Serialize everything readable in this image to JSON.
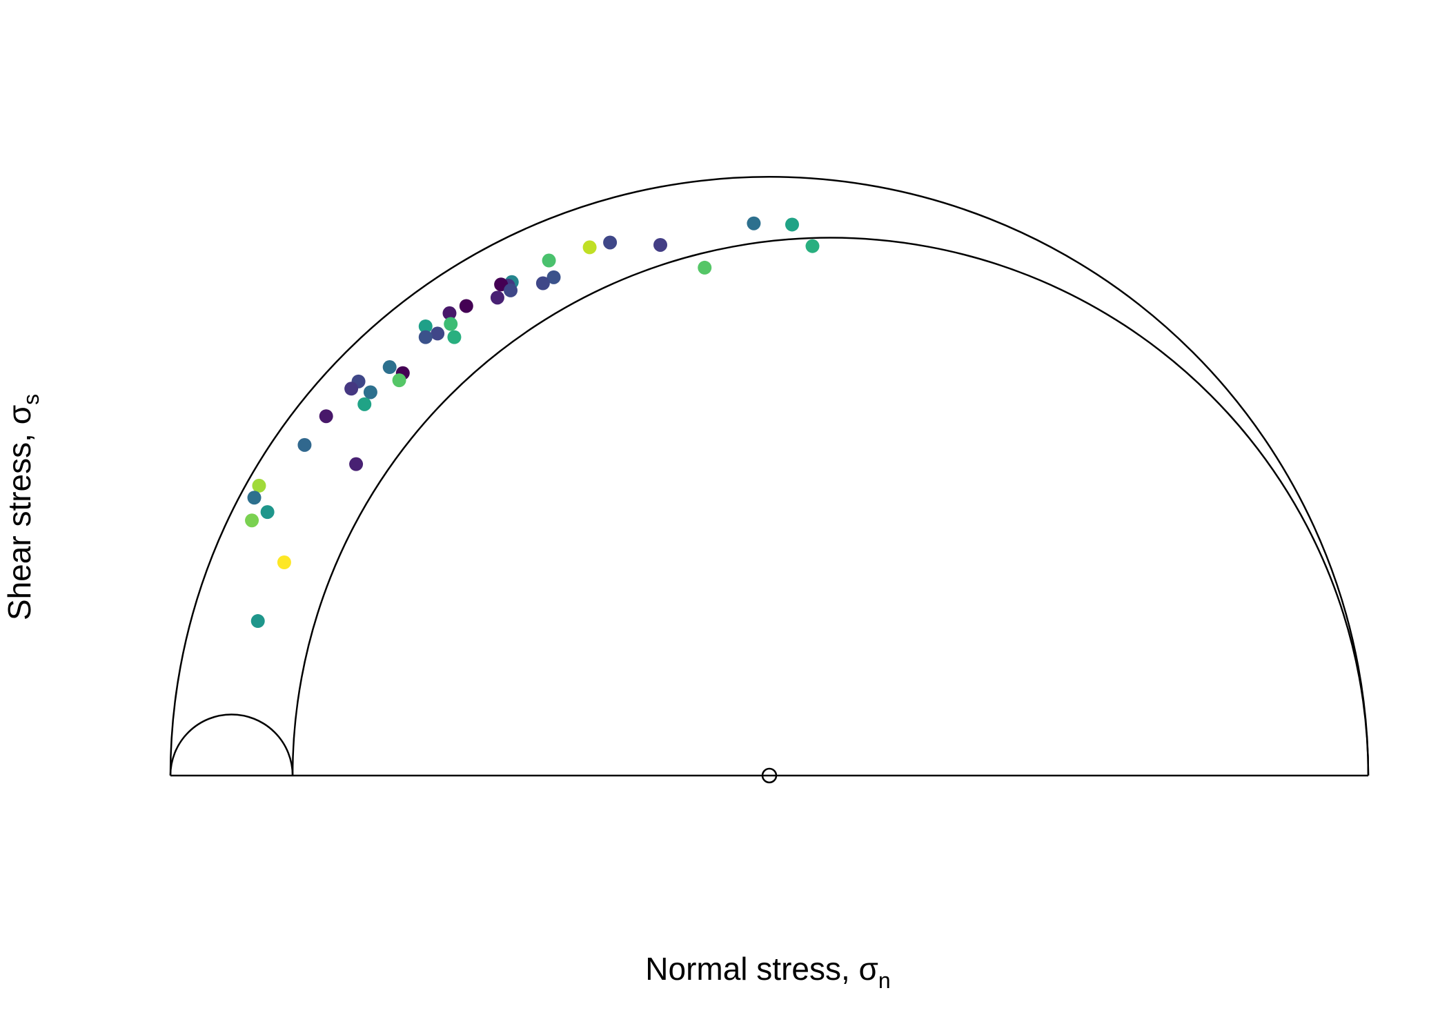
{
  "chart_data": {
    "type": "scatter",
    "title": "",
    "xlabel": "Normal stress, σ",
    "xlabel_subscript": "n",
    "ylabel": "Shear stress, σ",
    "ylabel_subscript": "s",
    "xlim": [
      0,
      1
    ],
    "ylim": [
      0,
      0.5
    ],
    "grid": false,
    "legend": "none",
    "circles": [
      {
        "name": "sigma1-sigma3",
        "center": 0.5,
        "radius": 0.5
      },
      {
        "name": "sigma1-sigma2",
        "center": 0.551,
        "radius": 0.449
      },
      {
        "name": "sigma2-sigma3",
        "center": 0.051,
        "radius": 0.051
      }
    ],
    "center_marker": [
      0.5,
      0.0
    ],
    "points": [
      {
        "x": 0.487,
        "y": 0.461,
        "color": "#2d708e"
      },
      {
        "x": 0.519,
        "y": 0.46,
        "color": "#20a386"
      },
      {
        "x": 0.536,
        "y": 0.442,
        "color": "#29af7f"
      },
      {
        "x": 0.367,
        "y": 0.445,
        "color": "#3f4788"
      },
      {
        "x": 0.409,
        "y": 0.443,
        "color": "#433e85"
      },
      {
        "x": 0.35,
        "y": 0.441,
        "color": "#c0df25"
      },
      {
        "x": 0.316,
        "y": 0.43,
        "color": "#4ac16d"
      },
      {
        "x": 0.446,
        "y": 0.424,
        "color": "#55c667"
      },
      {
        "x": 0.32,
        "y": 0.416,
        "color": "#3b528b"
      },
      {
        "x": 0.311,
        "y": 0.411,
        "color": "#3f4788"
      },
      {
        "x": 0.285,
        "y": 0.412,
        "color": "#25858e"
      },
      {
        "x": 0.282,
        "y": 0.409,
        "color": "#453781"
      },
      {
        "x": 0.276,
        "y": 0.41,
        "color": "#440154"
      },
      {
        "x": 0.284,
        "y": 0.405,
        "color": "#3f4788"
      },
      {
        "x": 0.273,
        "y": 0.399,
        "color": "#482173"
      },
      {
        "x": 0.247,
        "y": 0.392,
        "color": "#440154"
      },
      {
        "x": 0.233,
        "y": 0.386,
        "color": "#48186a"
      },
      {
        "x": 0.234,
        "y": 0.377,
        "color": "#3dbc74"
      },
      {
        "x": 0.213,
        "y": 0.375,
        "color": "#1fa088"
      },
      {
        "x": 0.237,
        "y": 0.366,
        "color": "#29af7f"
      },
      {
        "x": 0.223,
        "y": 0.369,
        "color": "#404688"
      },
      {
        "x": 0.213,
        "y": 0.366,
        "color": "#3b528b"
      },
      {
        "x": 0.183,
        "y": 0.341,
        "color": "#2d708e"
      },
      {
        "x": 0.194,
        "y": 0.336,
        "color": "#440154"
      },
      {
        "x": 0.191,
        "y": 0.33,
        "color": "#55c667"
      },
      {
        "x": 0.157,
        "y": 0.329,
        "color": "#3f4788"
      },
      {
        "x": 0.167,
        "y": 0.32,
        "color": "#2d708e"
      },
      {
        "x": 0.151,
        "y": 0.323,
        "color": "#453781"
      },
      {
        "x": 0.162,
        "y": 0.31,
        "color": "#20a386"
      },
      {
        "x": 0.13,
        "y": 0.3,
        "color": "#48186a"
      },
      {
        "x": 0.112,
        "y": 0.276,
        "color": "#31688e"
      },
      {
        "x": 0.155,
        "y": 0.26,
        "color": "#482173"
      },
      {
        "x": 0.074,
        "y": 0.242,
        "color": "#a0da39"
      },
      {
        "x": 0.07,
        "y": 0.232,
        "color": "#2d708e"
      },
      {
        "x": 0.081,
        "y": 0.22,
        "color": "#1f968b"
      },
      {
        "x": 0.068,
        "y": 0.213,
        "color": "#7ad151"
      },
      {
        "x": 0.095,
        "y": 0.178,
        "color": "#fde725"
      },
      {
        "x": 0.073,
        "y": 0.129,
        "color": "#1f968b"
      }
    ]
  }
}
